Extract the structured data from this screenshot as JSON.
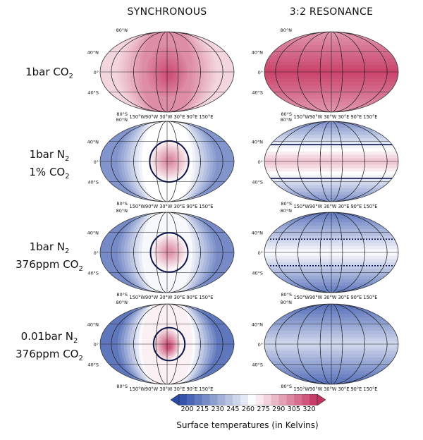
{
  "columns": {
    "synchronous": "SYNCHRONOUS",
    "resonance": "3:2 RESONANCE"
  },
  "rows": [
    {
      "line1": "1bar CO",
      "line1_sub": "2",
      "line1_after": "",
      "line2": "",
      "line2_sub": "",
      "line2_after": ""
    },
    {
      "line1": "1bar N",
      "line1_sub": "2",
      "line1_after": "",
      "line2": "1% CO",
      "line2_sub": "2",
      "line2_after": ""
    },
    {
      "line1": "1bar N",
      "line1_sub": "2",
      "line1_after": "",
      "line2": "376ppm CO",
      "line2_sub": "2",
      "line2_after": ""
    },
    {
      "line1": "0.01bar N",
      "line1_sub": "2",
      "line1_after": "",
      "line2": "376ppm CO",
      "line2_sub": "2",
      "line2_after": ""
    }
  ],
  "map_labels": {
    "lat": [
      "80°N",
      "40°N",
      "0°",
      "40°S",
      "80°S"
    ],
    "lon": "150°W90°W 30°W  30°E  90°E 150°E"
  },
  "maps": [
    {
      "row": 0,
      "col": "synchronous",
      "base": 278,
      "peak": 318,
      "spot_radius": 0.62,
      "spot_shape": "blob",
      "contour": false,
      "bands": false
    },
    {
      "row": 0,
      "col": "resonance",
      "base": 312,
      "peak": 322,
      "spot_radius": 0,
      "spot_shape": "none",
      "contour": false,
      "bands": true
    },
    {
      "row": 1,
      "col": "synchronous",
      "base": 222,
      "peak": 300,
      "spot_radius": 0.5,
      "spot_shape": "circle",
      "contour": true,
      "bands": false
    },
    {
      "row": 1,
      "col": "resonance",
      "base": 236,
      "peak": 282,
      "spot_radius": 0,
      "spot_shape": "none",
      "contour": true,
      "bands": true
    },
    {
      "row": 2,
      "col": "synchronous",
      "base": 218,
      "peak": 298,
      "spot_radius": 0.48,
      "spot_shape": "circle",
      "contour": true,
      "bands": false
    },
    {
      "row": 2,
      "col": "resonance",
      "base": 226,
      "peak": 262,
      "spot_radius": 0,
      "spot_shape": "none",
      "contour": true,
      "bands": true
    },
    {
      "row": 3,
      "col": "synchronous",
      "base": 210,
      "peak": 318,
      "spot_radius": 0.38,
      "spot_shape": "blob",
      "contour": true,
      "bands": false
    },
    {
      "row": 3,
      "col": "resonance",
      "base": 222,
      "peak": 248,
      "spot_radius": 0,
      "spot_shape": "none",
      "contour": false,
      "bands": true
    }
  ],
  "colorbar": {
    "ticks": [
      "200",
      "215",
      "230",
      "245",
      "260",
      "275",
      "290",
      "305",
      "320"
    ],
    "min": 192,
    "max": 328,
    "title": "Surface temperatures (in Kelvins)"
  },
  "colors": {
    "cold": "#2a4aa8",
    "mid": "#ffffff",
    "warm": "#c4325e",
    "contour": "#0c1550",
    "grid": "#222222"
  }
}
